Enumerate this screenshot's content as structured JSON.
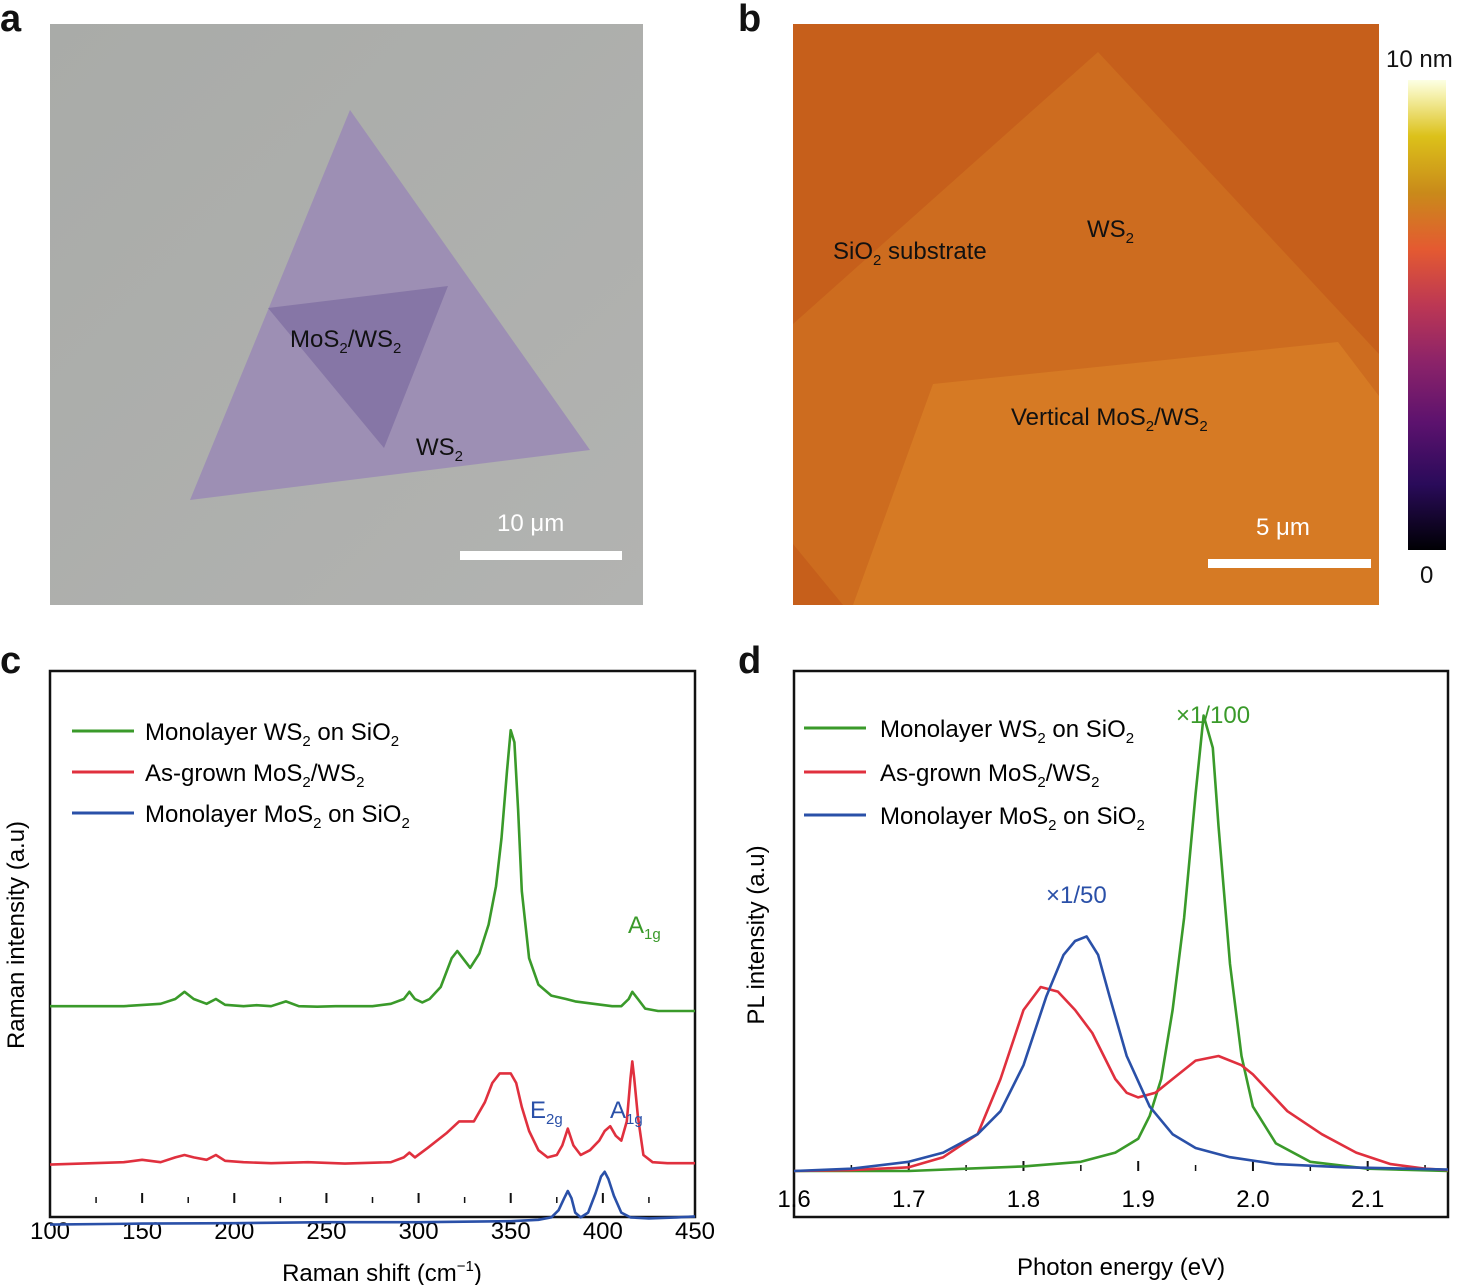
{
  "panels": {
    "a": {
      "letter": "a",
      "label_heterostructure": "MoS2/WS2",
      "label_ws2": "WS2",
      "scale_bar": "10 μm"
    },
    "b": {
      "letter": "b",
      "label_substrate": "SiO2 substrate",
      "label_ws2": "WS2",
      "label_vertical": "Vertical MoS2/WS2",
      "scale_bar": "5 μm",
      "colorbar_max": "10 nm",
      "colorbar_min": "0"
    },
    "c": {
      "letter": "c"
    },
    "d": {
      "letter": "d"
    }
  },
  "chart_data": [
    {
      "type": "line",
      "panel": "c",
      "xlabel": "Raman shift (cm⁻¹)",
      "ylabel": "Raman intensity (a.u)",
      "xlim": [
        100,
        450
      ],
      "ylim": [
        0,
        1
      ],
      "xticks": [
        "100",
        "150",
        "200",
        "250",
        "300",
        "350",
        "400",
        "450"
      ],
      "legend": [
        "Monolayer WS2 on SiO2",
        "As-grown MoS2/WS2",
        "Monolayer MoS2 on SiO2"
      ],
      "annotations": [
        "A1g",
        "E2g",
        "A1g"
      ],
      "series": [
        {
          "name": "Monolayer WS2 on SiO2",
          "color": "#3a9a2a",
          "x": [
            100,
            140,
            160,
            168,
            173,
            178,
            185,
            190,
            195,
            205,
            212,
            220,
            228,
            235,
            245,
            255,
            275,
            285,
            292,
            295,
            298,
            302,
            306,
            312,
            318,
            321,
            324,
            328,
            333,
            338,
            342,
            345,
            348,
            350,
            352,
            354,
            356,
            360,
            365,
            372,
            380,
            385,
            395,
            405,
            410,
            414,
            416,
            419,
            423,
            430,
            450
          ],
          "y": [
            0.41,
            0.41,
            0.415,
            0.425,
            0.44,
            0.425,
            0.415,
            0.425,
            0.413,
            0.41,
            0.412,
            0.41,
            0.42,
            0.41,
            0.409,
            0.41,
            0.41,
            0.415,
            0.425,
            0.44,
            0.425,
            0.418,
            0.425,
            0.45,
            0.51,
            0.525,
            0.51,
            0.49,
            0.52,
            0.58,
            0.66,
            0.76,
            0.9,
            0.985,
            0.96,
            0.82,
            0.65,
            0.51,
            0.455,
            0.432,
            0.425,
            0.42,
            0.415,
            0.41,
            0.41,
            0.425,
            0.44,
            0.425,
            0.405,
            0.4,
            0.4
          ]
        },
        {
          "name": "As-grown MoS2/WS2",
          "color": "#e0303e",
          "x": [
            100,
            140,
            150,
            160,
            168,
            173,
            178,
            185,
            190,
            195,
            205,
            220,
            240,
            260,
            285,
            292,
            295,
            298,
            305,
            315,
            322,
            330,
            336,
            340,
            344,
            347,
            350,
            353,
            356,
            360,
            365,
            370,
            375,
            378,
            381,
            384,
            388,
            393,
            398,
            401,
            404,
            407,
            410,
            413,
            415,
            416,
            417,
            419,
            422,
            427,
            435,
            450
          ],
          "y": [
            0.08,
            0.085,
            0.09,
            0.085,
            0.095,
            0.1,
            0.095,
            0.09,
            0.1,
            0.088,
            0.085,
            0.083,
            0.085,
            0.082,
            0.085,
            0.095,
            0.105,
            0.095,
            0.115,
            0.145,
            0.17,
            0.17,
            0.21,
            0.25,
            0.27,
            0.27,
            0.27,
            0.25,
            0.2,
            0.15,
            0.11,
            0.095,
            0.1,
            0.12,
            0.155,
            0.12,
            0.1,
            0.11,
            0.13,
            0.15,
            0.16,
            0.14,
            0.13,
            0.17,
            0.26,
            0.295,
            0.26,
            0.18,
            0.1,
            0.085,
            0.083,
            0.083
          ]
        },
        {
          "name": "Monolayer MoS2 on SiO2",
          "color": "#2a50a8",
          "x": [
            100,
            150,
            200,
            250,
            300,
            350,
            365,
            372,
            376,
            379,
            381,
            383,
            385,
            388,
            392,
            396,
            399,
            401,
            403,
            406,
            410,
            415,
            425,
            440,
            450
          ],
          "y": [
            -0.045,
            -0.043,
            -0.042,
            -0.04,
            -0.04,
            -0.038,
            -0.035,
            -0.03,
            -0.015,
            0.01,
            0.025,
            0.01,
            -0.02,
            -0.03,
            -0.02,
            0.02,
            0.055,
            0.065,
            0.05,
            0.015,
            -0.02,
            -0.03,
            -0.032,
            -0.03,
            -0.028
          ]
        }
      ]
    },
    {
      "type": "line",
      "panel": "d",
      "xlabel": "Photon energy (eV)",
      "ylabel": "PL intensity (a.u)",
      "xlim": [
        1.6,
        2.17
      ],
      "ylim": [
        0,
        1
      ],
      "xticks": [
        "1.6",
        "1.7",
        "1.8",
        "1.9",
        "2.0",
        "2.1"
      ],
      "legend": [
        "Monolayer WS2 on SiO2",
        "As-grown MoS2/WS2",
        "Monolayer MoS2 on SiO2"
      ],
      "annotations": [
        "×1/100",
        "×1/50"
      ],
      "series": [
        {
          "name": "Monolayer WS2 on SiO2",
          "color": "#3a9a2a",
          "x": [
            1.6,
            1.7,
            1.75,
            1.8,
            1.85,
            1.88,
            1.9,
            1.91,
            1.92,
            1.93,
            1.94,
            1.95,
            1.957,
            1.965,
            1.97,
            1.98,
            1.99,
            2.0,
            2.02,
            2.05,
            2.1,
            2.17
          ],
          "y": [
            0.0,
            0.0,
            0.005,
            0.01,
            0.02,
            0.04,
            0.07,
            0.12,
            0.2,
            0.35,
            0.55,
            0.82,
            0.99,
            0.92,
            0.75,
            0.45,
            0.25,
            0.14,
            0.06,
            0.02,
            0.005,
            0.0
          ]
        },
        {
          "name": "As-grown MoS2/WS2",
          "color": "#e0303e",
          "x": [
            1.6,
            1.65,
            1.7,
            1.73,
            1.76,
            1.78,
            1.8,
            1.815,
            1.83,
            1.845,
            1.86,
            1.87,
            1.88,
            1.89,
            1.9,
            1.915,
            1.93,
            1.95,
            1.97,
            1.99,
            2.0,
            2.03,
            2.06,
            2.09,
            2.12,
            2.15,
            2.17
          ],
          "y": [
            0.0,
            0.002,
            0.008,
            0.03,
            0.08,
            0.2,
            0.35,
            0.4,
            0.39,
            0.35,
            0.3,
            0.25,
            0.2,
            0.17,
            0.16,
            0.17,
            0.2,
            0.24,
            0.25,
            0.23,
            0.21,
            0.13,
            0.08,
            0.04,
            0.015,
            0.005,
            0.002
          ]
        },
        {
          "name": "Monolayer MoS2 on SiO2",
          "color": "#2a50a8",
          "x": [
            1.6,
            1.65,
            1.7,
            1.73,
            1.76,
            1.78,
            1.8,
            1.82,
            1.835,
            1.845,
            1.855,
            1.865,
            1.875,
            1.89,
            1.91,
            1.93,
            1.95,
            1.98,
            2.02,
            2.08,
            2.17
          ],
          "y": [
            0.0,
            0.005,
            0.02,
            0.04,
            0.08,
            0.13,
            0.23,
            0.38,
            0.47,
            0.5,
            0.51,
            0.47,
            0.38,
            0.25,
            0.14,
            0.08,
            0.05,
            0.03,
            0.015,
            0.008,
            0.003
          ]
        }
      ]
    }
  ]
}
